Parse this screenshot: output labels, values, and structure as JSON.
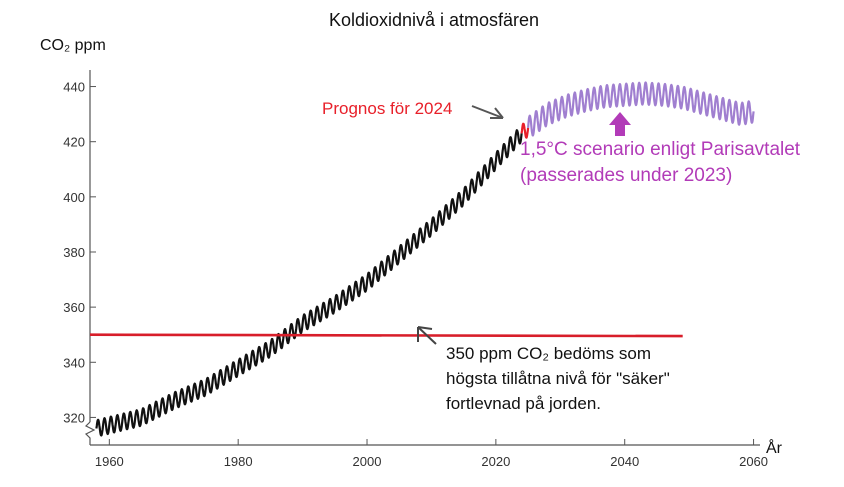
{
  "chart_data": {
    "type": "line",
    "title": "Koldioxidnivå i atmosfären",
    "ylabel": "CO₂ ppm",
    "xlabel": "År",
    "xlim": [
      1957,
      2061
    ],
    "ylim": [
      310,
      446
    ],
    "x_ticks": [
      1960,
      1980,
      2000,
      2020,
      2040,
      2060
    ],
    "y_ticks": [
      320,
      340,
      360,
      380,
      400,
      420,
      440
    ],
    "grid": false,
    "series": [
      {
        "color": "#111111",
        "seasonal_amplitude": 3,
        "x": [
          1958,
          1965,
          1970,
          1975,
          1980,
          1985,
          1990,
          1995,
          2000,
          2005,
          2010,
          2015,
          2020,
          2024
        ],
        "y": [
          316,
          320,
          326,
          331,
          338,
          345,
          354,
          361,
          369,
          379,
          389,
          400,
          413,
          423
        ]
      },
      {
        "name": "Prognos för 2024",
        "color": "#e8202a",
        "seasonal_amplitude": 3,
        "x": [
          2024,
          2025
        ],
        "y": [
          423,
          425
        ]
      },
      {
        "name": "1,5°C scenario enligt Parisavtalet",
        "color": "#a07fd0",
        "seasonal_amplitude": 4,
        "x": [
          2025,
          2028,
          2031,
          2034,
          2037,
          2040,
          2043,
          2046,
          2049,
          2052,
          2055,
          2058,
          2060
        ],
        "y": [
          425,
          430,
          433,
          435,
          436.5,
          437,
          437.5,
          437,
          436,
          434,
          432,
          430,
          431
        ]
      },
      {
        "name": "350 ppm",
        "color": "#d81e2a",
        "seasonal_amplitude": 0,
        "x": [
          1957,
          2049
        ],
        "y": [
          350,
          349.5
        ]
      }
    ],
    "annotations": {
      "forecast": "Prognos för 2024",
      "scenario_line1": "1,5°C scenario enligt Parisavtalet",
      "scenario_line2": "(passerades under 2023)",
      "threshold_line1": "350 ppm CO₂ bedöms som",
      "threshold_line2": "högsta tillåtna nivå för \"säker\"",
      "threshold_line3": "fortlevnad på jorden."
    },
    "colors": {
      "forecast_text": "#e8202a",
      "scenario_text": "#b23bb8",
      "scenario_arrow": "#b23bb8"
    }
  }
}
